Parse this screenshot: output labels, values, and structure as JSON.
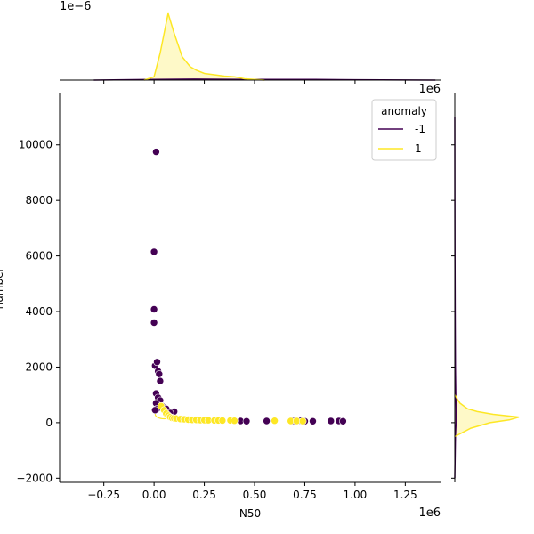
{
  "chart_data": {
    "type": "scatter",
    "title": "",
    "xlabel": "N50",
    "ylabel": "number",
    "x_offset_text": "1e6",
    "y_offset_text": "1e6",
    "top_offset_text": "1e−6",
    "xlim": [
      -0.47,
      1.43
    ],
    "ylim": [
      -2150,
      11850
    ],
    "x_ticks": [
      -0.25,
      0.0,
      0.25,
      0.5,
      0.75,
      1.0,
      1.25
    ],
    "x_tick_labels": [
      "−0.25",
      "0.00",
      "0.25",
      "0.50",
      "0.75",
      "1.00",
      "1.25"
    ],
    "y_ticks": [
      -2000,
      0,
      2000,
      4000,
      6000,
      8000,
      10000
    ],
    "y_tick_labels": [
      "−2000",
      "0",
      "2000",
      "4000",
      "6000",
      "8000",
      "10000"
    ],
    "grid": false,
    "legend": {
      "title": "anomaly",
      "placement": "top-right",
      "entries": [
        {
          "label": "-1",
          "color": "#440154"
        },
        {
          "label": "1",
          "color": "#fde725"
        }
      ]
    },
    "series": [
      {
        "name": "-1",
        "color": "#440154",
        "points": [
          [
            0.01,
            9750
          ],
          [
            0.0,
            6150
          ],
          [
            0.0,
            4080
          ],
          [
            0.0,
            3600
          ],
          [
            0.005,
            2050
          ],
          [
            0.015,
            2180
          ],
          [
            0.02,
            1850
          ],
          [
            0.025,
            1750
          ],
          [
            0.03,
            1500
          ],
          [
            0.01,
            1050
          ],
          [
            0.02,
            900
          ],
          [
            0.03,
            800
          ],
          [
            0.01,
            700
          ],
          [
            0.04,
            600
          ],
          [
            0.015,
            500
          ],
          [
            0.005,
            450
          ],
          [
            0.1,
            400
          ],
          [
            0.06,
            500
          ],
          [
            0.08,
            350
          ],
          [
            0.43,
            60
          ],
          [
            0.46,
            50
          ],
          [
            0.56,
            60
          ],
          [
            0.69,
            60
          ],
          [
            0.73,
            70
          ],
          [
            0.75,
            50
          ],
          [
            0.79,
            50
          ],
          [
            0.88,
            60
          ],
          [
            0.92,
            60
          ],
          [
            0.94,
            50
          ]
        ]
      },
      {
        "name": "1",
        "color": "#fde725",
        "points": [
          [
            0.035,
            600
          ],
          [
            0.05,
            450
          ],
          [
            0.06,
            330
          ],
          [
            0.07,
            260
          ],
          [
            0.08,
            200
          ],
          [
            0.09,
            170
          ],
          [
            0.1,
            160
          ],
          [
            0.11,
            150
          ],
          [
            0.13,
            130
          ],
          [
            0.15,
            120
          ],
          [
            0.17,
            110
          ],
          [
            0.19,
            100
          ],
          [
            0.21,
            100
          ],
          [
            0.23,
            90
          ],
          [
            0.25,
            90
          ],
          [
            0.27,
            85
          ],
          [
            0.3,
            80
          ],
          [
            0.32,
            80
          ],
          [
            0.34,
            75
          ],
          [
            0.38,
            80
          ],
          [
            0.4,
            70
          ],
          [
            0.6,
            70
          ],
          [
            0.68,
            60
          ],
          [
            0.71,
            60
          ],
          [
            0.74,
            55
          ]
        ]
      }
    ],
    "marginal_x": {
      "series": [
        {
          "name": "-1",
          "color": "#440154",
          "x": [
            -0.3,
            0.0,
            0.2,
            0.5,
            0.8,
            1.0,
            1.4
          ],
          "density": [
            0.0,
            0.01,
            0.015,
            0.01,
            0.01,
            0.005,
            0.0
          ]
        },
        {
          "name": "1",
          "color": "#fde725",
          "x": [
            -0.05,
            0.0,
            0.03,
            0.07,
            0.1,
            0.14,
            0.18,
            0.21,
            0.25,
            0.3,
            0.35,
            0.4,
            0.45,
            0.5,
            0.55
          ],
          "density": [
            0.0,
            0.05,
            0.4,
            1.0,
            0.7,
            0.35,
            0.2,
            0.15,
            0.1,
            0.08,
            0.06,
            0.05,
            0.02,
            0.01,
            0.0
          ]
        }
      ]
    },
    "marginal_y": {
      "series": [
        {
          "name": "-1",
          "color": "#440154",
          "y": [
            -2000,
            -500,
            0,
            500,
            1000,
            2000,
            4000,
            6000,
            8000,
            11000
          ],
          "density": [
            0.0,
            0.01,
            0.02,
            0.02,
            0.015,
            0.01,
            0.005,
            0.003,
            0.002,
            0.0
          ]
        },
        {
          "name": "1",
          "color": "#fde725",
          "y": [
            -500,
            -200,
            0,
            100,
            200,
            300,
            400,
            500,
            700,
            1000
          ],
          "density": [
            0.0,
            0.25,
            0.55,
            0.85,
            1.0,
            0.6,
            0.35,
            0.2,
            0.08,
            0.0
          ]
        }
      ]
    }
  }
}
